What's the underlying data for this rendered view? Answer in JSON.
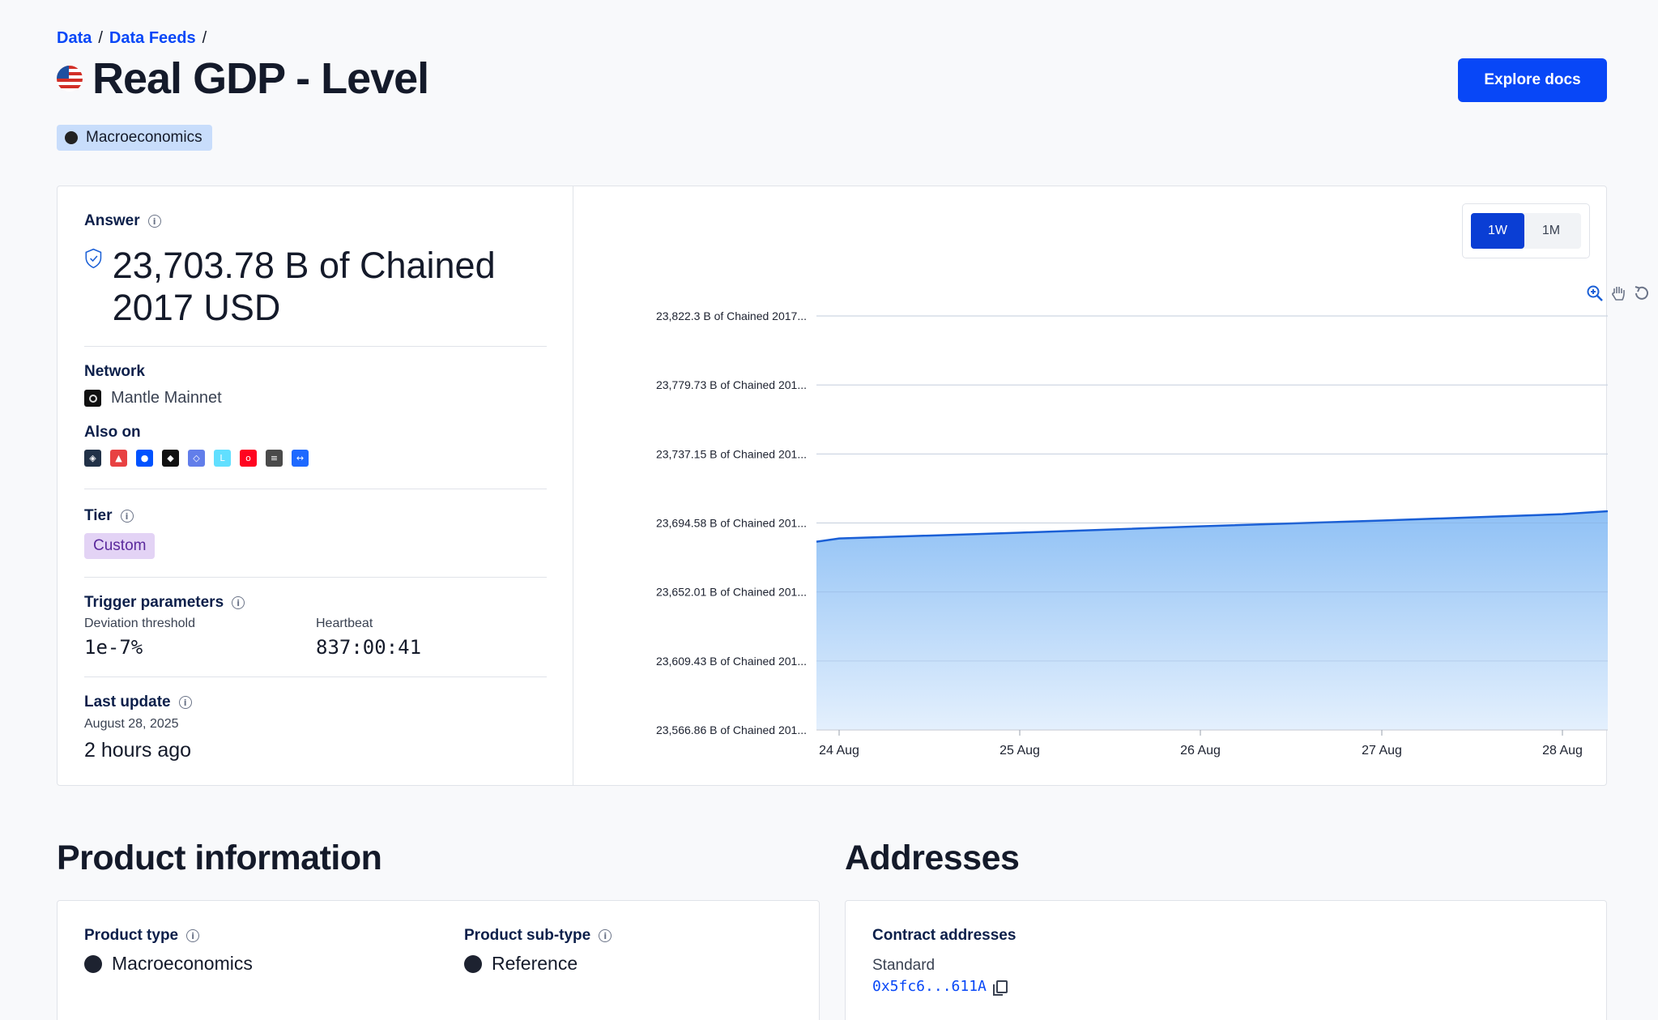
{
  "breadcrumb": {
    "items": [
      "Data",
      "Data Feeds"
    ],
    "separator": "/"
  },
  "header": {
    "title": "Real GDP - Level",
    "explore_label": "Explore docs"
  },
  "tag": {
    "label": "Macroeconomics"
  },
  "answer": {
    "label": "Answer",
    "value": "23,703.78 B of Chained 2017 USD"
  },
  "network": {
    "label": "Network",
    "value": "Mantle Mainnet"
  },
  "also_on": {
    "label": "Also on",
    "chains": [
      {
        "icon": "arbitrum-icon",
        "color": "#213147"
      },
      {
        "icon": "avalanche-icon",
        "color": "#e84142"
      },
      {
        "icon": "base-icon",
        "color": "#0052ff"
      },
      {
        "icon": "bnb-icon",
        "color": "#111111"
      },
      {
        "icon": "ethereum-icon",
        "color": "#627eea"
      },
      {
        "icon": "linea-icon",
        "color": "#61dfff"
      },
      {
        "icon": "optimism-icon",
        "color": "#ff0420"
      },
      {
        "icon": "scroll-icon",
        "color": "#4a4a4a"
      },
      {
        "icon": "zksync-icon",
        "color": "#1e69ff"
      }
    ]
  },
  "tier": {
    "label": "Tier",
    "value": "Custom"
  },
  "trigger": {
    "label": "Trigger parameters",
    "deviation_label": "Deviation threshold",
    "deviation_value": "1e-7%",
    "heartbeat_label": "Heartbeat",
    "heartbeat_value": "837:00:41"
  },
  "last_update": {
    "label": "Last update",
    "date": "August 28, 2025",
    "ago": "2 hours ago"
  },
  "range_toggle": {
    "options": [
      "1W",
      "1M"
    ],
    "selected": "1W"
  },
  "chart_data": {
    "type": "area",
    "x": [
      "24 Aug",
      "25 Aug",
      "26 Aug",
      "27 Aug",
      "28 Aug"
    ],
    "x_start": "23 Aug",
    "series": [
      {
        "x": [
          "23 Aug",
          "24 Aug",
          "25 Aug",
          "26 Aug",
          "27 Aug",
          "28 Aug",
          "28 Aug+"
        ],
        "values": [
          23683.0,
          23685.0,
          23688.6,
          23692.5,
          23696.1,
          23700.0,
          23703.78
        ]
      }
    ],
    "y_tick_labels": [
      "23,822.3 B of Chained 2017...",
      "23,779.73 B of Chained 201...",
      "23,737.15 B of Chained 201...",
      "23,694.58 B of Chained 201...",
      "23,652.01 B of Chained 201...",
      "23,609.43 B of Chained 201...",
      "23,566.86 B of Chained 201..."
    ],
    "ylim": [
      23566.86,
      23822.3
    ],
    "grid": true,
    "colors": {
      "line": "#1a5fd6",
      "fill_top": "#8ec0f5",
      "fill_bottom": "#e4f0fd"
    }
  },
  "product_info": {
    "heading": "Product information",
    "type_label": "Product type",
    "type_value": "Macroeconomics",
    "subtype_label": "Product sub-type",
    "subtype_value": "Reference"
  },
  "addresses": {
    "heading": "Addresses",
    "contract_label": "Contract addresses",
    "standard_label": "Standard",
    "standard_value": "0x5fc6...611A"
  },
  "colors": {
    "accent": "#0847f7",
    "tier_bg": "#e3d3f5",
    "tag_bg": "#c8ddfb"
  }
}
